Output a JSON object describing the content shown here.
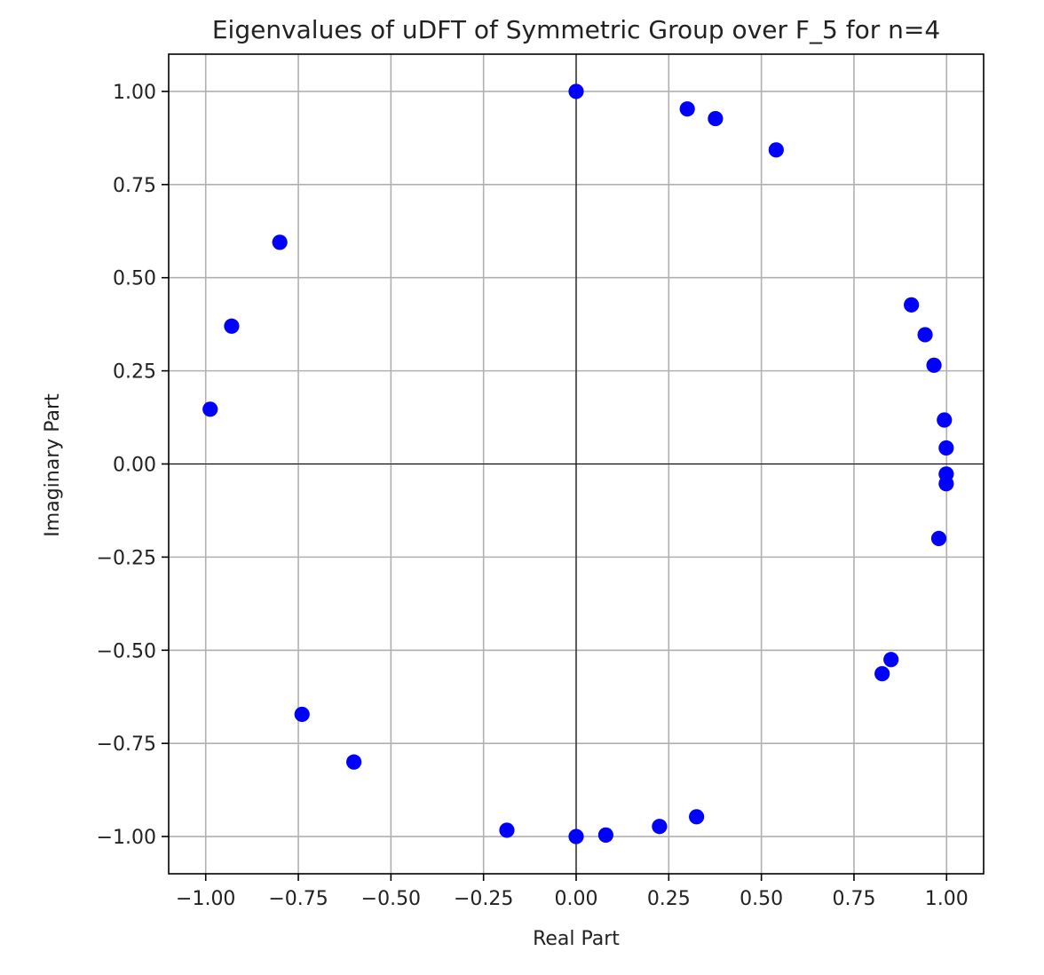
{
  "chart_data": {
    "type": "scatter",
    "title": "Eigenvalues of uDFT of Symmetric Group over F_5 for n=4",
    "xlabel": "Real Part",
    "ylabel": "Imaginary Part",
    "xlim": [
      -1.1,
      1.1
    ],
    "ylim": [
      -1.1,
      1.1
    ],
    "xticks": [
      -1.0,
      -0.75,
      -0.5,
      -0.25,
      0.0,
      0.25,
      0.5,
      0.75,
      1.0
    ],
    "xtick_labels": [
      "−1.00",
      "−0.75",
      "−0.50",
      "−0.25",
      "0.00",
      "0.25",
      "0.50",
      "0.75",
      "1.00"
    ],
    "yticks": [
      1.0,
      0.75,
      0.5,
      0.25,
      0.0,
      -0.25,
      -0.5,
      -0.75,
      -1.0
    ],
    "ytick_labels": [
      "1.00",
      "0.75",
      "0.50",
      "0.25",
      "0.00",
      "−0.25",
      "−0.50",
      "−0.75",
      "−1.00"
    ],
    "grid": true,
    "zero_lines": true,
    "marker_color": "#0000ff",
    "grid_color": "#b0b0b0",
    "series": [
      {
        "x": [
          0.0,
          0.3,
          0.376,
          0.54,
          -0.8,
          -0.93,
          -0.988,
          0.905,
          0.942,
          0.966,
          0.994,
          0.999,
          0.999,
          0.999,
          0.979,
          0.85,
          0.826,
          -0.74,
          -0.6,
          -0.187,
          0.0,
          0.08,
          0.225,
          0.325
        ],
        "y": [
          1.0,
          0.953,
          0.927,
          0.843,
          0.595,
          0.37,
          0.147,
          0.427,
          0.347,
          0.265,
          0.118,
          0.043,
          -0.027,
          -0.053,
          -0.2,
          -0.525,
          -0.563,
          -0.672,
          -0.8,
          -0.983,
          -1.0,
          -0.996,
          -0.973,
          -0.947
        ]
      }
    ]
  }
}
